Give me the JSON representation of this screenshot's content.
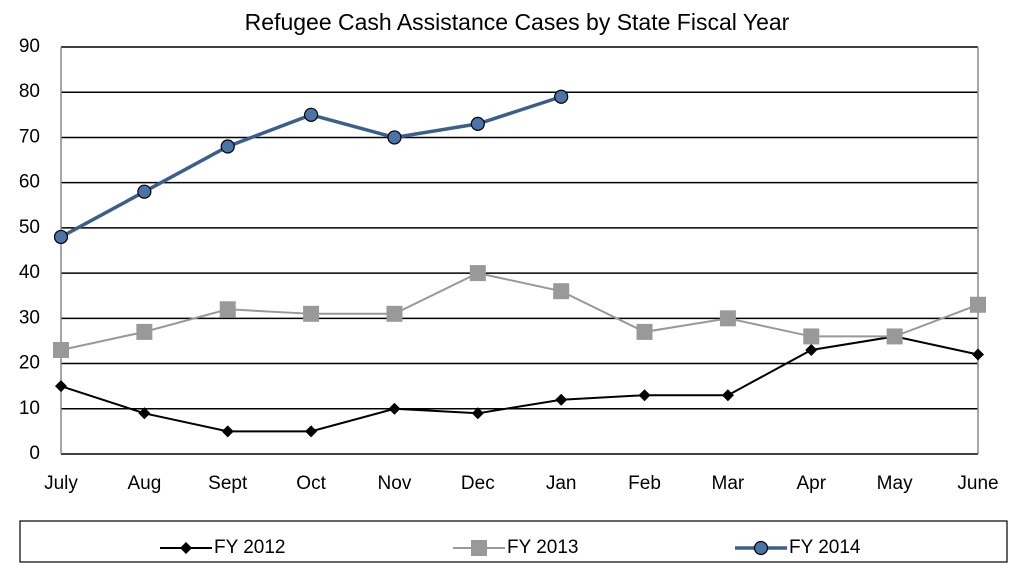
{
  "chart_data": {
    "type": "line",
    "title": "Refugee Cash Assistance Cases by State Fiscal Year",
    "categories": [
      "July",
      "Aug",
      "Sept",
      "Oct",
      "Nov",
      "Dec",
      "Jan",
      "Feb",
      "Mar",
      "Apr",
      "May",
      "June"
    ],
    "series": [
      {
        "name": "FY 2012",
        "color": "#000000",
        "marker": "diamond",
        "values": [
          15,
          9,
          5,
          5,
          10,
          9,
          12,
          13,
          13,
          23,
          26,
          22
        ]
      },
      {
        "name": "FY 2013",
        "color": "#999999",
        "marker": "square",
        "values": [
          23,
          27,
          32,
          31,
          31,
          40,
          36,
          27,
          30,
          26,
          26,
          33
        ]
      },
      {
        "name": "FY 2014",
        "color": "#3b5e8c",
        "marker": "circle",
        "values": [
          48,
          58,
          68,
          75,
          70,
          73,
          79,
          null,
          null,
          null,
          null,
          null
        ]
      }
    ],
    "ylim": [
      0,
      90
    ],
    "yticks": [
      0,
      10,
      20,
      30,
      40,
      50,
      60,
      70,
      80,
      90
    ],
    "grid": true,
    "legend": "bottom"
  }
}
